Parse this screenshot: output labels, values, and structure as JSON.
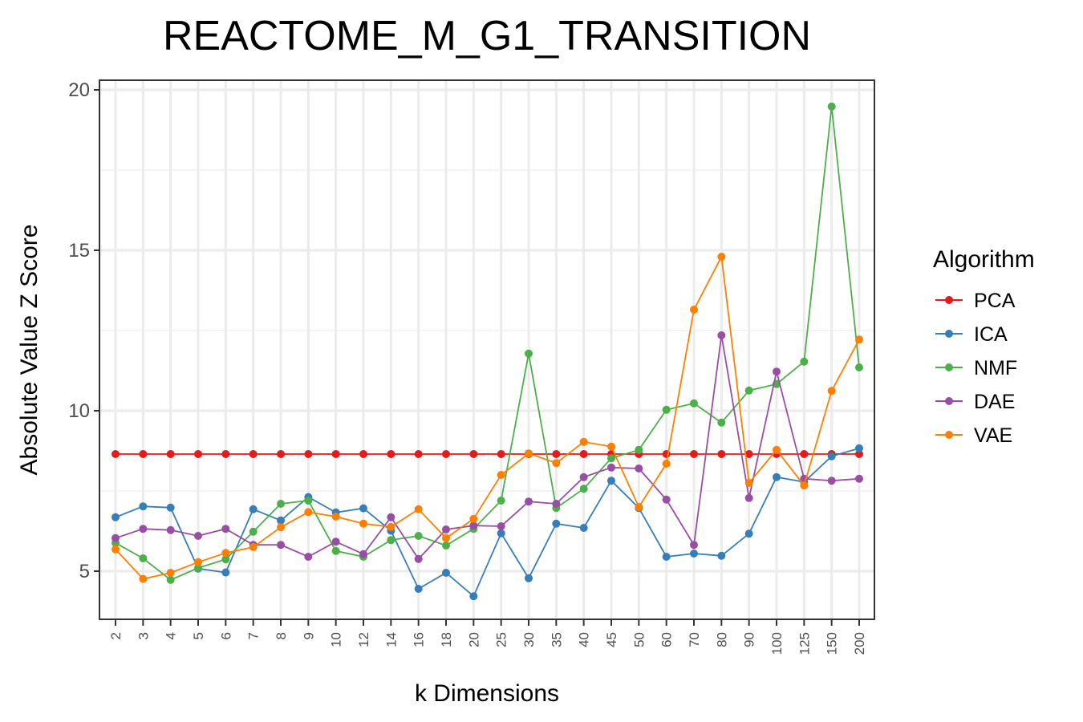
{
  "chart_data": {
    "type": "line",
    "title": "REACTOME_M_G1_TRANSITION",
    "xlabel": "k Dimensions",
    "ylabel": "Absolute Value Z Score",
    "ylim": [
      3.5,
      20.3
    ],
    "yticks": [
      5,
      10,
      15,
      20
    ],
    "ytick_labels": [
      "5",
      "10",
      "15",
      "20"
    ],
    "grid": true,
    "legend_title": "Algorithm",
    "legend_position": "right",
    "categories": [
      "2",
      "3",
      "4",
      "5",
      "6",
      "7",
      "8",
      "9",
      "10",
      "12",
      "14",
      "16",
      "18",
      "20",
      "25",
      "30",
      "35",
      "40",
      "45",
      "50",
      "60",
      "70",
      "80",
      "90",
      "100",
      "125",
      "150",
      "200"
    ],
    "series": [
      {
        "name": "PCA",
        "color": "#e41a1c",
        "values": [
          8.65,
          8.65,
          8.65,
          8.65,
          8.65,
          8.65,
          8.65,
          8.65,
          8.65,
          8.65,
          8.65,
          8.65,
          8.65,
          8.65,
          8.65,
          8.65,
          8.65,
          8.65,
          8.65,
          8.65,
          8.65,
          8.65,
          8.65,
          8.65,
          8.65,
          8.65,
          8.65,
          8.65
        ]
      },
      {
        "name": "ICA",
        "color": "#377eb8",
        "values": [
          6.68,
          7.02,
          6.98,
          5.08,
          4.96,
          6.93,
          6.58,
          7.31,
          6.83,
          6.96,
          6.26,
          4.45,
          4.95,
          4.22,
          6.18,
          4.78,
          6.48,
          6.35,
          7.82,
          6.97,
          5.45,
          5.55,
          5.48,
          6.17,
          7.93,
          7.78,
          8.58,
          8.83
        ]
      },
      {
        "name": "NMF",
        "color": "#4daf4a",
        "values": [
          5.88,
          5.4,
          4.73,
          5.1,
          5.37,
          6.23,
          7.1,
          7.2,
          5.63,
          5.45,
          5.97,
          6.1,
          5.8,
          6.32,
          7.2,
          11.78,
          6.97,
          7.57,
          8.52,
          8.78,
          10.03,
          10.23,
          9.63,
          10.63,
          10.83,
          11.53,
          19.48,
          11.35
        ]
      },
      {
        "name": "DAE",
        "color": "#984ea3",
        "values": [
          6.03,
          6.32,
          6.28,
          6.1,
          6.32,
          5.82,
          5.82,
          5.45,
          5.92,
          5.53,
          6.68,
          5.38,
          6.3,
          6.42,
          6.4,
          7.17,
          7.1,
          7.93,
          8.23,
          8.2,
          7.23,
          5.82,
          12.35,
          7.28,
          11.22,
          7.88,
          7.82,
          7.88
        ]
      },
      {
        "name": "VAE",
        "color": "#ff7f00",
        "values": [
          5.68,
          4.76,
          4.95,
          5.28,
          5.57,
          5.75,
          6.37,
          6.84,
          6.7,
          6.48,
          6.38,
          6.93,
          6.03,
          6.63,
          8.0,
          8.67,
          8.37,
          9.03,
          8.88,
          7.0,
          8.35,
          13.15,
          14.8,
          7.75,
          8.78,
          7.67,
          10.62,
          12.22
        ]
      }
    ]
  }
}
